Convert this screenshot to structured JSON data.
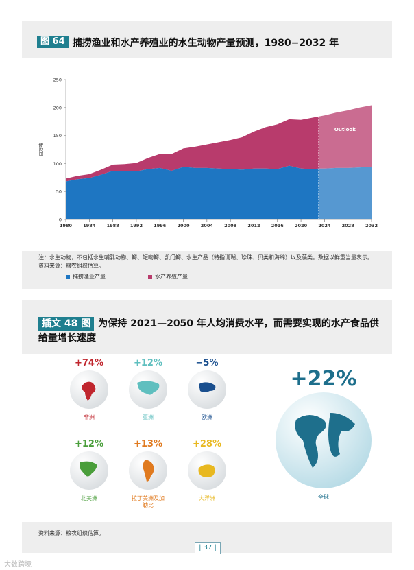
{
  "figure64": {
    "tag": "图 64",
    "title": "捕捞渔业和水产养殖业的水生动物产量预测，1980−2032 年",
    "legend": [
      "捕捞渔业产量",
      "水产养殖产量"
    ],
    "note": "注：水生动物，不包括水生哺乳动物、鳄、短吻鳄、凯门鳄、水生产品（特指珊瑚、珍珠、贝类和海绵）以及藻类。数据以鲜重当量表示。",
    "source": "资料来源：粮农组织估算。"
  },
  "chart_data": {
    "type": "area",
    "title": "",
    "xlabel": "",
    "ylabel": "百万吨",
    "ylim": [
      0,
      250
    ],
    "xlim": [
      1980,
      2032
    ],
    "yticks": [
      0,
      50,
      100,
      150,
      200,
      250
    ],
    "xticks": [
      1980,
      1984,
      1988,
      1992,
      1996,
      2000,
      2004,
      2008,
      2012,
      2016,
      2020,
      2024,
      2028,
      2032
    ],
    "annotation": "Outlook",
    "outlook_start": 2023,
    "stacked": true,
    "x": [
      1980,
      1982,
      1984,
      1986,
      1988,
      1990,
      1992,
      1994,
      1996,
      1998,
      2000,
      2002,
      2004,
      2006,
      2008,
      2010,
      2012,
      2014,
      2016,
      2018,
      2020,
      2022,
      2023,
      2024,
      2026,
      2028,
      2030,
      2032
    ],
    "series": [
      {
        "name": "捕捞渔业产量",
        "color": "#1e76c2",
        "values": [
          68,
          72,
          74,
          80,
          87,
          86,
          86,
          90,
          92,
          87,
          94,
          92,
          92,
          91,
          90,
          89,
          91,
          91,
          90,
          96,
          91,
          90,
          91,
          91,
          92,
          92,
          93,
          94
        ]
      },
      {
        "name": "水产养殖产量",
        "color": "#b83b6c",
        "values": [
          5,
          6,
          7,
          9,
          11,
          13,
          15,
          20,
          25,
          30,
          33,
          38,
          42,
          47,
          52,
          58,
          66,
          74,
          80,
          83,
          87,
          92,
          93,
          95,
          99,
          103,
          107,
          110
        ]
      }
    ]
  },
  "box48": {
    "tag": "插文 48 图",
    "title": "为保持 2021—2050 年人均消费水平，而需要实现的水产食品供给量增长速度",
    "source": "资料来源：粮农组织估算。",
    "regions": [
      {
        "name": "非洲",
        "pct": "+74%",
        "color": "#c0262e",
        "icon": "globe-africa-icon"
      },
      {
        "name": "亚洲",
        "pct": "+12%",
        "color": "#5fbfbf",
        "icon": "globe-asia-icon"
      },
      {
        "name": "欧洲",
        "pct": "−5%",
        "color": "#1a4f8e",
        "icon": "globe-europe-icon"
      },
      {
        "name": "北美洲",
        "pct": "+12%",
        "color": "#4a9e3b",
        "icon": "globe-north-america-icon"
      },
      {
        "name": "拉丁美洲及加勒比",
        "pct": "+13%",
        "color": "#e07a1f",
        "icon": "globe-latin-america-icon"
      },
      {
        "name": "大洋洲",
        "pct": "+28%",
        "color": "#e8b820",
        "icon": "globe-oceania-icon"
      },
      {
        "name": "全球",
        "pct": "+22%",
        "color": "#1e6f8c",
        "icon": "globe-world-icon"
      }
    ]
  },
  "page": {
    "number": "| 37 |"
  },
  "watermark": "大数跨境"
}
